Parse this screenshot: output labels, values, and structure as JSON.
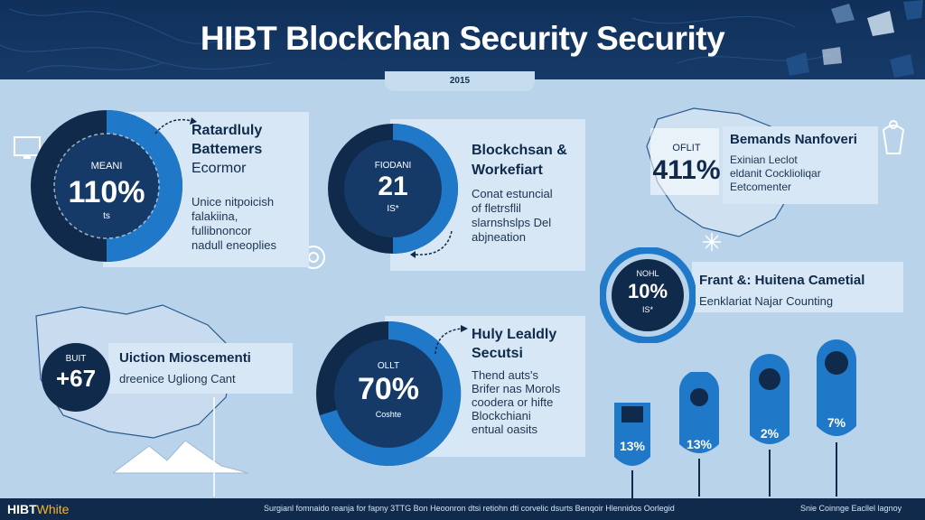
{
  "header": {
    "title": "HIBT Blockchan Security Security",
    "year": "2015"
  },
  "sections": {
    "top_left": {
      "title_lines": [
        "Ratardluly",
        "Battemers",
        "Ecormor"
      ],
      "body_lines": [
        "Unice nitpoicish",
        "falakiina,",
        "fullibnoncor",
        "nadull eneoplies"
      ],
      "donut": {
        "label_top": "MEANI",
        "value": "110%",
        "label_bottom": "ts"
      }
    },
    "top_center": {
      "title_lines": [
        "Blockchsan &",
        "Workefiart"
      ],
      "body_lines": [
        "Conat estuncial",
        "of fletrsflil",
        "slarnshslps Del",
        "abjneation"
      ],
      "donut": {
        "label_top": "FIODANI",
        "value": "21",
        "label_bottom": "IS*"
      }
    },
    "top_right": {
      "title": "Bemands Nanfoveri",
      "body_lines": [
        "Exinian Leclot",
        "eldanit Cocklioliqar",
        "Eetcomenter"
      ],
      "stat": {
        "label": "OFLIT",
        "value": "411%"
      }
    },
    "mid_right": {
      "title": "Frant &: Huitena Cametial",
      "body": "Eenklariat Najar Counting",
      "donut": {
        "label_top": "NOHL",
        "value": "10%",
        "label_bottom": "IS*"
      }
    },
    "mid_left": {
      "title": "Uiction Mioscementi",
      "body": "dreenice Ugliong Cant",
      "stat": {
        "label": "BUIT",
        "value": "+67"
      }
    },
    "bottom_center": {
      "title_lines": [
        "Huly Lealdly",
        "Secutsi"
      ],
      "body_lines": [
        "Thend auts's",
        "Brifer nas Morols",
        "coodera or hifte",
        "Blockchiani",
        "entual oasits"
      ],
      "donut": {
        "label_top": "OLLT",
        "value": "70%",
        "label_bottom": "Coshte"
      }
    },
    "bottom_right": {
      "bars": [
        {
          "value": "13%"
        },
        {
          "value": "13%"
        },
        {
          "value": "2%"
        },
        {
          "value": "7%"
        }
      ]
    }
  },
  "footer": {
    "brand": "HIBT",
    "brand_accent": "White",
    "center_text": "Surgianl fomnaido reanja for fapny 3TTG Bon Heoonron dtsi retiohn dti corvelic dsurts Benqoir Hlennidos Oorlegid",
    "right_text": "Snie Coinnge Eacllel lagnoy"
  },
  "colors": {
    "navy": "#0f2a4a",
    "blue": "#1f78c8",
    "light": "#d7e7f5",
    "background": "#b8d3ea",
    "accent_yellow": "#f2b632"
  }
}
